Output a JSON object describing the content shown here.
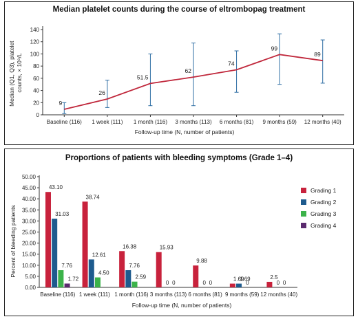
{
  "chart_data": [
    {
      "type": "line",
      "title": "Median platelet counts during the course of eltrombopag treatment",
      "xlabel": "Follow-up time (N, number of patients)",
      "ylabel_lines": [
        "Median (Q1, Q3), platelet",
        "counts, × 10⁹/L"
      ],
      "categories": [
        "Baseline (116)",
        "1 week (111)",
        "1 month (116)",
        "3 months (113)",
        "6 months (81)",
        "9 months (59)",
        "12 months (40)"
      ],
      "series": [
        {
          "values": [
            9,
            26,
            51.5,
            62,
            74,
            99,
            89
          ],
          "value_labels": [
            "9",
            "26",
            "51.5",
            "62",
            "74",
            "99",
            "89"
          ],
          "q1": [
            2,
            12,
            15,
            15,
            37,
            50,
            52
          ],
          "q3": [
            20,
            57,
            100,
            118,
            105,
            133,
            123
          ],
          "color": "#c0283c",
          "error_color": "#2d6da3"
        }
      ],
      "ylim": [
        0,
        140
      ],
      "yticks": [
        "0",
        "20",
        "40",
        "60",
        "80",
        "100",
        "120",
        "140"
      ],
      "grid": false,
      "legend": "none"
    },
    {
      "type": "bar",
      "title": "Proportions of patients with bleeding symptoms (Grade 1–4)",
      "xlabel": "Follow-up time (N, number of patients)",
      "ylabel": "Percent of bleeding patients",
      "categories": [
        "Baseline (116)",
        "1 week (111)",
        "1 month (116)",
        "3 months (113)",
        "6 months (81)",
        "9 months (59)",
        "12 months (40)"
      ],
      "series": [
        {
          "name": "Grading 1",
          "color": "#c8223c",
          "values": [
            43.1,
            38.74,
            16.38,
            15.93,
            9.88,
            1.69,
            2.5
          ],
          "labels": [
            "43.10",
            "38.74",
            "16.38",
            "15.93",
            "9.88",
            "1.69",
            "2.5"
          ]
        },
        {
          "name": "Grading 2",
          "color": "#1e5b8e",
          "values": [
            31.03,
            12.61,
            7.76,
            0,
            0,
            1.69,
            0
          ],
          "labels": [
            "31.03",
            "12.61",
            "7.76",
            "0",
            "0",
            "1.69",
            "0"
          ]
        },
        {
          "name": "Grading 3",
          "color": "#3cb34a",
          "values": [
            7.76,
            4.5,
            2.59,
            0,
            0,
            0,
            0
          ],
          "labels": [
            "7.76",
            "4.50",
            "2.59",
            "0",
            "0",
            "0",
            "0"
          ]
        },
        {
          "name": "Grading 4",
          "color": "#5b2a6e",
          "values": [
            1.72,
            0,
            0,
            0,
            0,
            0,
            0
          ],
          "labels": [
            "1.72",
            "",
            "",
            "",
            "",
            "",
            ""
          ]
        }
      ],
      "ylim": [
        0,
        50
      ],
      "yticks": [
        "0.00",
        "5.00",
        "10.00",
        "15.00",
        "20.00",
        "25.00",
        "30.00",
        "35.00",
        "40.00",
        "45.00",
        "50.00"
      ],
      "grid": false,
      "legend": "right"
    }
  ]
}
